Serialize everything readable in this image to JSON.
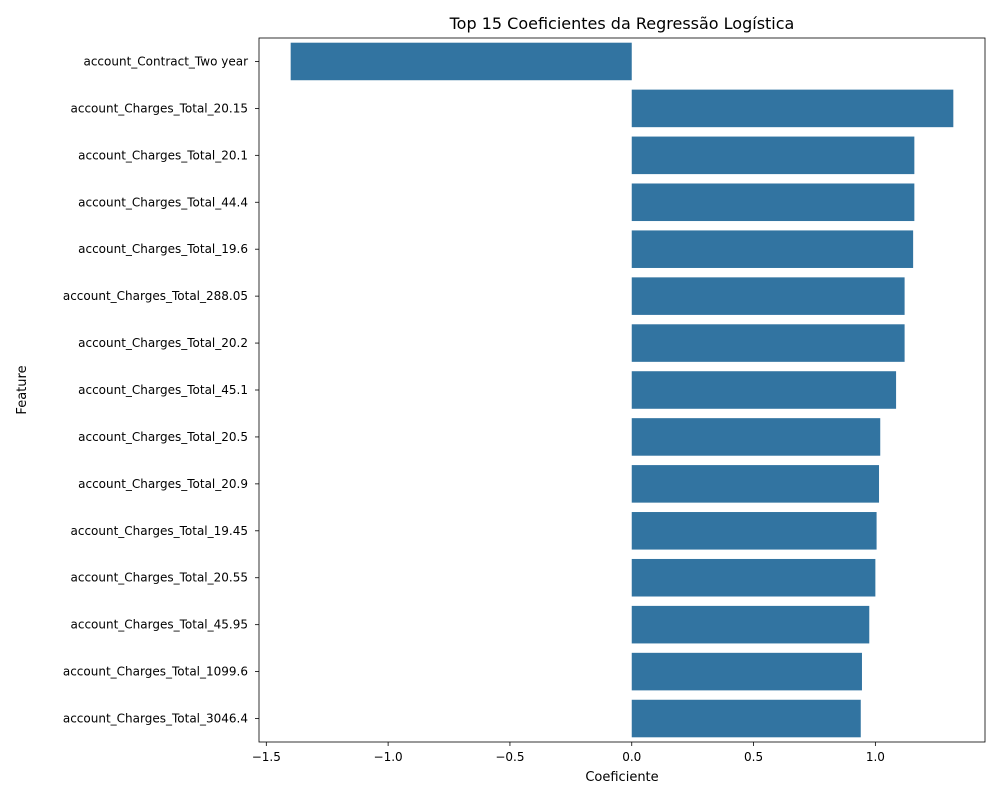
{
  "chart_data": {
    "type": "bar",
    "orientation": "horizontal",
    "title": "Top 15 Coeficientes da Regressão Logística",
    "xlabel": "Coeficiente",
    "ylabel": "Feature",
    "xlim": [
      -1.53,
      1.45
    ],
    "xticks": [
      -1.5,
      -1.0,
      -0.5,
      0.0,
      0.5,
      1.0
    ],
    "xtick_labels": [
      "−1.5",
      "−1.0",
      "−0.5",
      "0.0",
      "0.5",
      "1.0"
    ],
    "grid": false,
    "legend": "none",
    "bar_color": "#3274a1",
    "categories": [
      "account_Contract_Two year",
      "account_Charges_Total_20.15",
      "account_Charges_Total_20.1",
      "account_Charges_Total_44.4",
      "account_Charges_Total_19.6",
      "account_Charges_Total_288.05",
      "account_Charges_Total_20.2",
      "account_Charges_Total_45.1",
      "account_Charges_Total_20.5",
      "account_Charges_Total_20.9",
      "account_Charges_Total_19.45",
      "account_Charges_Total_20.55",
      "account_Charges_Total_45.95",
      "account_Charges_Total_1099.6",
      "account_Charges_Total_3046.4"
    ],
    "values": [
      -1.4,
      1.32,
      1.16,
      1.16,
      1.155,
      1.12,
      1.12,
      1.085,
      1.02,
      1.015,
      1.005,
      1.0,
      0.975,
      0.945,
      0.94
    ]
  }
}
